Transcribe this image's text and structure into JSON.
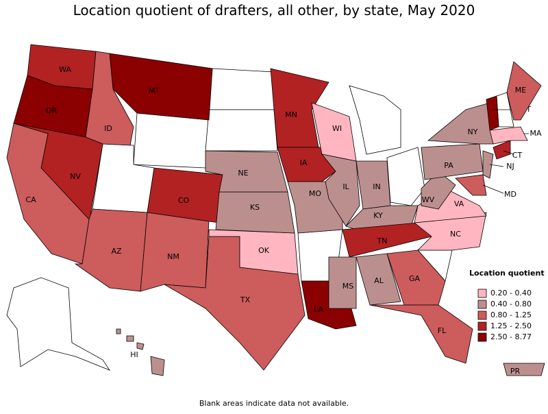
{
  "title": "Location quotient of drafters, all other, by state, May 2020",
  "legend": {
    "title": "Location quotient",
    "items": [
      {
        "label": "0.20 - 0.40",
        "color": "#ffb6c1"
      },
      {
        "label": "0.40 - 0.80",
        "color": "#bc8f8f"
      },
      {
        "label": "0.80 - 1.25",
        "color": "#cd5c5c"
      },
      {
        "label": "1.25 - 2.50",
        "color": "#b22222"
      },
      {
        "label": "2.50 - 8.77",
        "color": "#8b0000"
      }
    ]
  },
  "states": [
    {
      "label": "WA",
      "color": "#b22222"
    },
    {
      "label": "OR",
      "color": "#8b0000"
    },
    {
      "label": "MT",
      "color": "#8b0000"
    },
    {
      "label": "ID",
      "color": "#cd5c5c"
    },
    {
      "label": "NV",
      "color": "#b22222"
    },
    {
      "label": "CA",
      "color": "#cd5c5c"
    },
    {
      "label": "AZ",
      "color": "#cd5c5c"
    },
    {
      "label": "NM",
      "color": "#cd5c5c"
    },
    {
      "label": "CO",
      "color": "#b22222"
    },
    {
      "label": "TX",
      "color": "#cd5c5c"
    },
    {
      "label": "OK",
      "color": "#ffb6c1"
    },
    {
      "label": "KS",
      "color": "#bc8f8f"
    },
    {
      "label": "NE",
      "color": "#bc8f8f"
    },
    {
      "label": "MN",
      "color": "#b22222"
    },
    {
      "label": "IA",
      "color": "#b22222"
    },
    {
      "label": "MO",
      "color": "#bc8f8f"
    },
    {
      "label": "LA",
      "color": "#8b0000"
    },
    {
      "label": "WI",
      "color": "#ffb6c1"
    },
    {
      "label": "IL",
      "color": "#bc8f8f"
    },
    {
      "label": "IN",
      "color": "#bc8f8f"
    },
    {
      "label": "KY",
      "color": "#bc8f8f"
    },
    {
      "label": "TN",
      "color": "#b22222"
    },
    {
      "label": "MS",
      "color": "#bc8f8f"
    },
    {
      "label": "AL",
      "color": "#bc8f8f"
    },
    {
      "label": "GA",
      "color": "#cd5c5c"
    },
    {
      "label": "FL",
      "color": "#cd5c5c"
    },
    {
      "label": "NC",
      "color": "#ffb6c1"
    },
    {
      "label": "VA",
      "color": "#ffb6c1"
    },
    {
      "label": "WV",
      "color": "#bc8f8f"
    },
    {
      "label": "PA",
      "color": "#bc8f8f"
    },
    {
      "label": "NY",
      "color": "#bc8f8f"
    },
    {
      "label": "MD",
      "color": "#cd5c5c"
    },
    {
      "label": "NJ",
      "color": "#bc8f8f"
    },
    {
      "label": "CT",
      "color": "#b22222"
    },
    {
      "label": "MA",
      "color": "#ffb6c1"
    },
    {
      "label": "VT",
      "color": "#8b0000"
    },
    {
      "label": "ME",
      "color": "#cd5c5c"
    },
    {
      "label": "HI",
      "color": "#bc8f8f"
    },
    {
      "label": "PR",
      "color": "#bc8f8f"
    }
  ],
  "footnote": "Blank areas indicate data not available."
}
